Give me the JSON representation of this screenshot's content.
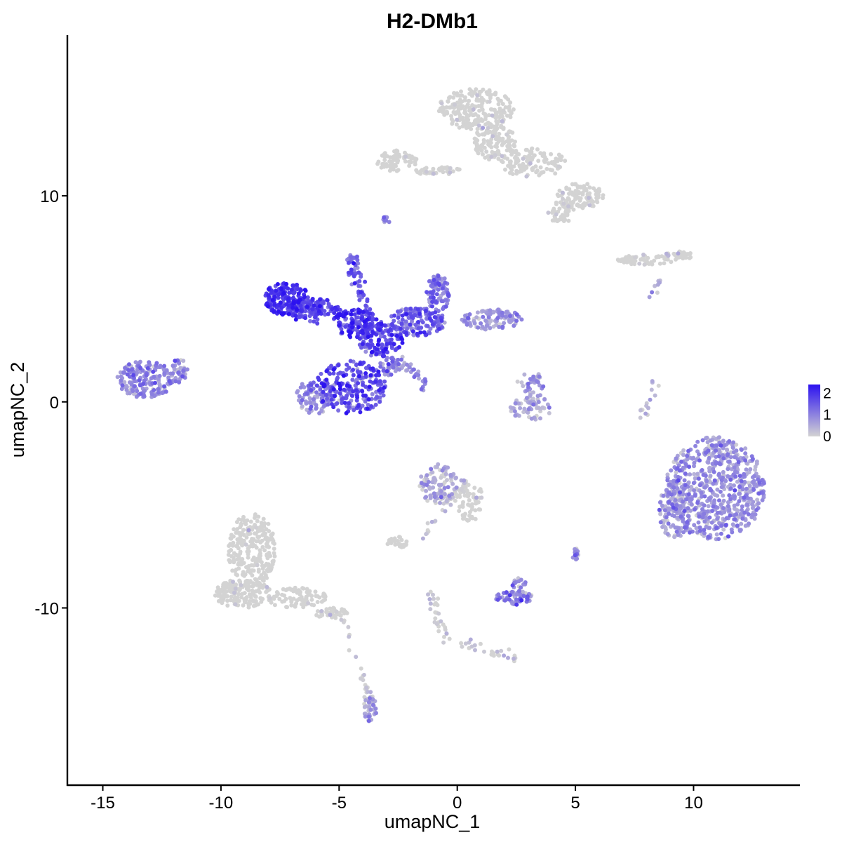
{
  "chart_data": {
    "type": "scatter",
    "title": "H2-DMb1",
    "xlabel": "umapNC_1",
    "ylabel": "umapNC_2",
    "xlim": [
      -16.5,
      14.5
    ],
    "ylim": [
      -18.6,
      17.8
    ],
    "x_ticks": [
      -15,
      -10,
      -5,
      0,
      5,
      10
    ],
    "y_ticks": [
      -10,
      0,
      10
    ],
    "x_tick_labels": [
      "-15",
      "-10",
      "-5",
      "0",
      "5",
      "10"
    ],
    "y_tick_labels": [
      "-10",
      "0",
      "10"
    ],
    "color_scale": {
      "low_color": "#d3d3d3",
      "high_color": "#2c12f0",
      "min": 0,
      "max": 2.4,
      "legend_ticks": [
        0,
        1,
        2
      ],
      "legend_labels": [
        "0",
        "1",
        "2"
      ]
    },
    "grid": false,
    "legend_position": "right",
    "clusters": [
      {
        "cx": -7.2,
        "cy": 5.0,
        "rx": 1.0,
        "ry": 0.8,
        "n": 180,
        "expr": 1.9,
        "expr_sd": 0.35
      },
      {
        "cx": -6.0,
        "cy": 4.4,
        "rx": 1.2,
        "ry": 0.6,
        "n": 120,
        "expr": 1.7,
        "expr_sd": 0.35
      },
      {
        "cx": -4.2,
        "cy": 3.8,
        "rx": 1.0,
        "ry": 0.7,
        "n": 130,
        "expr": 1.8,
        "expr_sd": 0.4
      },
      {
        "cx": -3.3,
        "cy": 3.0,
        "rx": 1.0,
        "ry": 0.8,
        "n": 130,
        "expr": 1.6,
        "expr_sd": 0.4
      },
      {
        "cx": -4.5,
        "cy": 0.7,
        "rx": 1.5,
        "ry": 1.3,
        "n": 240,
        "expr": 1.5,
        "expr_sd": 0.5
      },
      {
        "cx": -6.0,
        "cy": 0.3,
        "rx": 0.8,
        "ry": 0.9,
        "n": 90,
        "expr": 0.9,
        "expr_sd": 0.4
      },
      {
        "cx": -4.4,
        "cy": 6.6,
        "rx": 0.3,
        "ry": 0.6,
        "n": 25,
        "expr": 1.4,
        "expr_sd": 0.4
      },
      {
        "cx": -1.7,
        "cy": 3.9,
        "rx": 1.2,
        "ry": 0.7,
        "n": 150,
        "expr": 1.3,
        "expr_sd": 0.45
      },
      {
        "cx": -0.8,
        "cy": 5.3,
        "rx": 0.5,
        "ry": 0.9,
        "n": 80,
        "expr": 1.1,
        "expr_sd": 0.4
      },
      {
        "cx": 1.5,
        "cy": 4.0,
        "rx": 1.3,
        "ry": 0.5,
        "n": 110,
        "expr": 0.7,
        "expr_sd": 0.35
      },
      {
        "cx": -2.8,
        "cy": 1.7,
        "rx": 0.5,
        "ry": 0.5,
        "n": 40,
        "expr": 1.0,
        "expr_sd": 0.4
      },
      {
        "cx": -13.2,
        "cy": 1.1,
        "rx": 1.2,
        "ry": 0.9,
        "n": 190,
        "expr": 0.85,
        "expr_sd": 0.35
      },
      {
        "cx": -11.8,
        "cy": 1.5,
        "rx": 0.4,
        "ry": 0.6,
        "n": 40,
        "expr": 0.8,
        "expr_sd": 0.35
      },
      {
        "cx": 3.1,
        "cy": -0.3,
        "rx": 0.9,
        "ry": 0.6,
        "n": 60,
        "expr": 0.35,
        "expr_sd": 0.35
      },
      {
        "cx": 3.3,
        "cy": 0.8,
        "rx": 0.35,
        "ry": 0.6,
        "n": 30,
        "expr": 0.8,
        "expr_sd": 0.35
      },
      {
        "cx": 10.9,
        "cy": -4.2,
        "rx": 2.1,
        "ry": 2.5,
        "n": 650,
        "expr": 0.75,
        "expr_sd": 0.35
      },
      {
        "cx": 9.2,
        "cy": -5.2,
        "rx": 0.7,
        "ry": 1.4,
        "n": 120,
        "expr": 0.6,
        "expr_sd": 0.35
      },
      {
        "cx": 0.8,
        "cy": 14.2,
        "rx": 1.6,
        "ry": 1.0,
        "n": 220,
        "expr": 0.02,
        "expr_sd": 0.2
      },
      {
        "cx": 1.6,
        "cy": 12.6,
        "rx": 0.9,
        "ry": 0.9,
        "n": 120,
        "expr": 0.02,
        "expr_sd": 0.2
      },
      {
        "cx": 3.2,
        "cy": 11.6,
        "rx": 1.4,
        "ry": 0.7,
        "n": 120,
        "expr": 0.02,
        "expr_sd": 0.2
      },
      {
        "cx": 5.2,
        "cy": 10.0,
        "rx": 1.0,
        "ry": 0.6,
        "n": 100,
        "expr": 0.03,
        "expr_sd": 0.2
      },
      {
        "cx": 4.4,
        "cy": 9.2,
        "rx": 0.6,
        "ry": 0.5,
        "n": 50,
        "expr": 0.03,
        "expr_sd": 0.2
      },
      {
        "cx": -2.6,
        "cy": 11.7,
        "rx": 0.9,
        "ry": 0.5,
        "n": 70,
        "expr": 0.05,
        "expr_sd": 0.25
      },
      {
        "cx": -0.8,
        "cy": 11.2,
        "rx": 1.0,
        "ry": 0.2,
        "n": 40,
        "expr": 0.03,
        "expr_sd": 0.2
      },
      {
        "cx": -8.7,
        "cy": -7.2,
        "rx": 1.0,
        "ry": 1.8,
        "n": 260,
        "expr": 0.04,
        "expr_sd": 0.25
      },
      {
        "cx": -9.1,
        "cy": -9.3,
        "rx": 1.2,
        "ry": 0.7,
        "n": 150,
        "expr": 0.04,
        "expr_sd": 0.25
      },
      {
        "cx": -6.8,
        "cy": -9.5,
        "rx": 1.3,
        "ry": 0.5,
        "n": 90,
        "expr": 0.03,
        "expr_sd": 0.2
      },
      {
        "cx": -5.3,
        "cy": -10.3,
        "rx": 0.7,
        "ry": 0.3,
        "n": 40,
        "expr": 0.03,
        "expr_sd": 0.2
      },
      {
        "cx": -3.7,
        "cy": -14.9,
        "rx": 0.3,
        "ry": 0.6,
        "n": 40,
        "expr": 0.5,
        "expr_sd": 0.4
      },
      {
        "cx": -0.8,
        "cy": -4.0,
        "rx": 0.8,
        "ry": 1.0,
        "n": 110,
        "expr": 0.35,
        "expr_sd": 0.4
      },
      {
        "cx": 0.5,
        "cy": -4.8,
        "rx": 0.6,
        "ry": 1.0,
        "n": 70,
        "expr": 0.05,
        "expr_sd": 0.25
      },
      {
        "cx": -2.6,
        "cy": -6.8,
        "rx": 0.5,
        "ry": 0.3,
        "n": 30,
        "expr": 0.05,
        "expr_sd": 0.25
      },
      {
        "cx": 2.4,
        "cy": -9.5,
        "rx": 0.8,
        "ry": 0.35,
        "n": 70,
        "expr": 0.9,
        "expr_sd": 0.4
      },
      {
        "cx": 2.6,
        "cy": -8.8,
        "rx": 0.3,
        "ry": 0.3,
        "n": 15,
        "expr": 1.0,
        "expr_sd": 0.4
      },
      {
        "cx": 5.0,
        "cy": -7.4,
        "rx": 0.15,
        "ry": 0.3,
        "n": 15,
        "expr": 0.8,
        "expr_sd": 0.4
      },
      {
        "cx": 8.0,
        "cy": 6.9,
        "rx": 1.2,
        "ry": 0.25,
        "n": 60,
        "expr": 0.03,
        "expr_sd": 0.2
      },
      {
        "cx": 9.4,
        "cy": 7.1,
        "rx": 0.7,
        "ry": 0.2,
        "n": 40,
        "expr": 0.1,
        "expr_sd": 0.25
      },
      {
        "cx": -3.0,
        "cy": 8.8,
        "rx": 0.2,
        "ry": 0.25,
        "n": 10,
        "expr": 0.7,
        "expr_sd": 0.4
      }
    ],
    "segments": [
      {
        "x0": -4.4,
        "y0": 6.6,
        "x1": -3.8,
        "y1": 4.4,
        "n": 35,
        "expr": 1.4
      },
      {
        "x0": -2.3,
        "y0": 2.0,
        "x1": -1.2,
        "y1": 0.6,
        "n": 30,
        "expr": 0.8
      },
      {
        "x0": 0.3,
        "y0": -3.8,
        "x1": -1.5,
        "y1": -6.6,
        "n": 30,
        "expr": 0.1
      },
      {
        "x0": -1.2,
        "y0": -9.2,
        "x1": -0.5,
        "y1": -11.5,
        "n": 25,
        "expr": 0.05
      },
      {
        "x0": -0.5,
        "y0": -11.5,
        "x1": 2.5,
        "y1": -12.5,
        "n": 30,
        "expr": 0.03
      },
      {
        "x0": -4.8,
        "y0": -10.4,
        "x1": -3.7,
        "y1": -14.5,
        "n": 25,
        "expr": 0.05
      },
      {
        "x0": 8.4,
        "y0": 1.2,
        "x1": 7.9,
        "y1": -0.8,
        "n": 15,
        "expr": 0.4
      },
      {
        "x0": 8.8,
        "y0": 6.2,
        "x1": 8.0,
        "y1": 5.0,
        "n": 8,
        "expr": 0.6
      },
      {
        "x0": 2.5,
        "y0": 1.6,
        "x1": 3.3,
        "y1": -0.3,
        "n": 12,
        "expr": 0.6
      }
    ]
  }
}
